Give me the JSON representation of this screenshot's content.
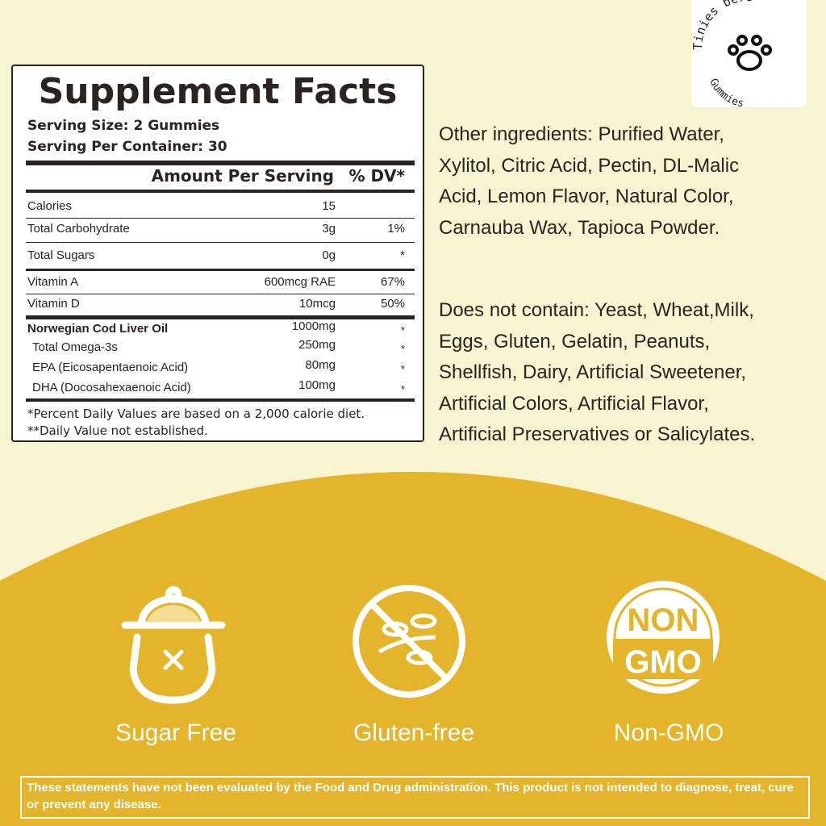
{
  "logo": {
    "top": "Tinies bers",
    "bottom": "Gummies"
  },
  "facts": {
    "title": "Supplement Facts",
    "serving_size": "Serving Size: 2 Gummies",
    "servings": "Serving Per Container: 30",
    "header": {
      "amount": "Amount Per Serving",
      "dv": "% DV*"
    },
    "rows": [
      {
        "name": "Calories",
        "amount": "15"
      },
      {
        "name": "Total Carbohydrate",
        "amount": "3g",
        "dv": "1%"
      },
      {
        "name": "Total Sugars",
        "amount": "0g",
        "dv": "*"
      },
      {
        "name": "Vitamin A",
        "amount": "600mcg RAE",
        "dv": "67%"
      },
      {
        "name": "Vitamin D",
        "amount": "10mcg",
        "dv": "50%"
      }
    ],
    "group": {
      "name": "Norwegian Cod Liver Oil",
      "amount": "1000mg",
      "dv": "*",
      "items": [
        {
          "name": "Total Omega-3s",
          "amount": "250mg",
          "dv": "*"
        },
        {
          "name": "EPA (Eicosapentaenoic Acid)",
          "amount": "80mg",
          "dv": "*"
        },
        {
          "name": "DHA (Docosahexaenoic Acid)",
          "amount": "100mg",
          "dv": "*"
        }
      ]
    },
    "footnotes": [
      "*Percent Daily Values are based on a 2,000 calorie diet.",
      "**Daily Value not established."
    ]
  },
  "other_ingredients": [
    "Other ingredients: Purified Water,",
    "Xylitol, Citric Acid, Pectin, DL-Malic",
    "Acid, Lemon Flavor, Natural Color,",
    "Carnauba Wax, Tapioca Powder."
  ],
  "does_not_contain": [
    "Does not contain: Yeast, Wheat,Milk,",
    "Eggs, Gluten, Gelatin, Peanuts,",
    "Shellfish, Dairy, Artificial Sweetener,",
    "Artificial Colors, Artificial Flavor,",
    "Artificial Preservatives or Salicylates."
  ],
  "badges": [
    {
      "label": "Sugar Free"
    },
    {
      "label": "Gluten-free"
    },
    {
      "label": "Non-GMO",
      "icon_text": [
        "NON",
        "GMO"
      ]
    }
  ],
  "disclaimer": "These statements have not been evaluated by the Food and Drug administration. This product is not intended to diagnose, treat, cure or prevent any disease."
}
